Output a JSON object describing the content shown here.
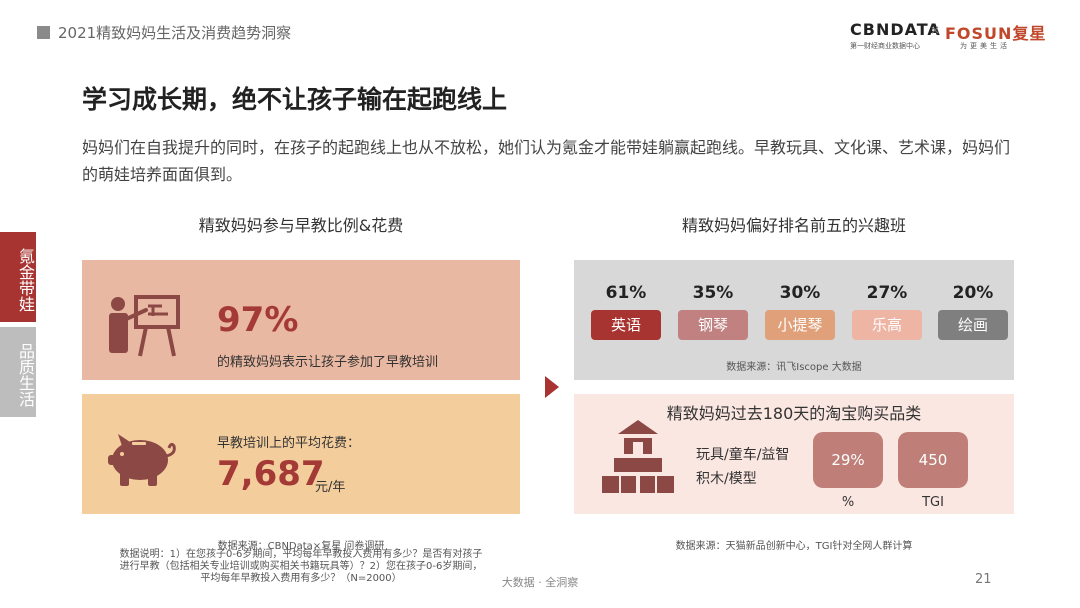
{
  "header": {
    "report_title": "2021精致妈妈生活及消费趋势洞察"
  },
  "logo": {
    "cbndata": "CBNDATA",
    "cbndata_sub": "第一财经商业数据中心",
    "times": "×",
    "fosun": "FOSUN复星",
    "fosun_sub": "为更美生活"
  },
  "page": {
    "title": "学习成长期，绝不让孩子输在起跑线上",
    "intro": "妈妈们在自我提升的同时，在孩子的起跑线上也从不放松，她们认为氪金才能带娃躺赢起跑线。早教玩具、文化课、艺术课，妈妈们的萌娃培养面面俱到。"
  },
  "side_tabs": {
    "active": "氪金带娃",
    "inactive": "品质生活"
  },
  "left": {
    "title": "精致妈妈参与早教比例&花费",
    "participation": {
      "value": "97%",
      "desc": "的精致妈妈表示让孩子参加了早教培训"
    },
    "spend": {
      "label": "早教培训上的平均花费：",
      "value": "7,687",
      "unit": "元/年"
    },
    "source": "数据来源：CBNData×复星 问卷调研",
    "note": "数据说明：1）在您孩子0-6岁期间，平均每年早教投入费用有多少？是否有对孩子进行早教（包括相关专业培训或购买相关书籍玩具等）？2）您在孩子0-6岁期间，平均每年早教投入费用有多少？（N=2000）"
  },
  "right": {
    "title": "精致妈妈偏好排名前五的兴趣班",
    "classes": [
      {
        "pct": "61%",
        "name": "英语",
        "color": "#a83432"
      },
      {
        "pct": "35%",
        "name": "钢琴",
        "color": "#c08180"
      },
      {
        "pct": "30%",
        "name": "小提琴",
        "color": "#e0a07a"
      },
      {
        "pct": "27%",
        "name": "乐高",
        "color": "#eeb4a4"
      },
      {
        "pct": "20%",
        "name": "绘画",
        "color": "#7f7f7f"
      }
    ],
    "classes_source": "数据来源：讯飞Iscope 大数据",
    "purchase": {
      "title": "精致妈妈过去180天的淘宝购买品类",
      "category_line1": "玩具/童车/益智",
      "category_line2": "积木/模型",
      "share_value": "29%",
      "share_label": "%",
      "tgi_value": "450",
      "tgi_label": "TGI"
    },
    "source": "数据来源：天猫新品创新中心，TGI针对全网人群计算"
  },
  "footer": {
    "text": "大数据 · 全洞察",
    "page_number": "21"
  }
}
